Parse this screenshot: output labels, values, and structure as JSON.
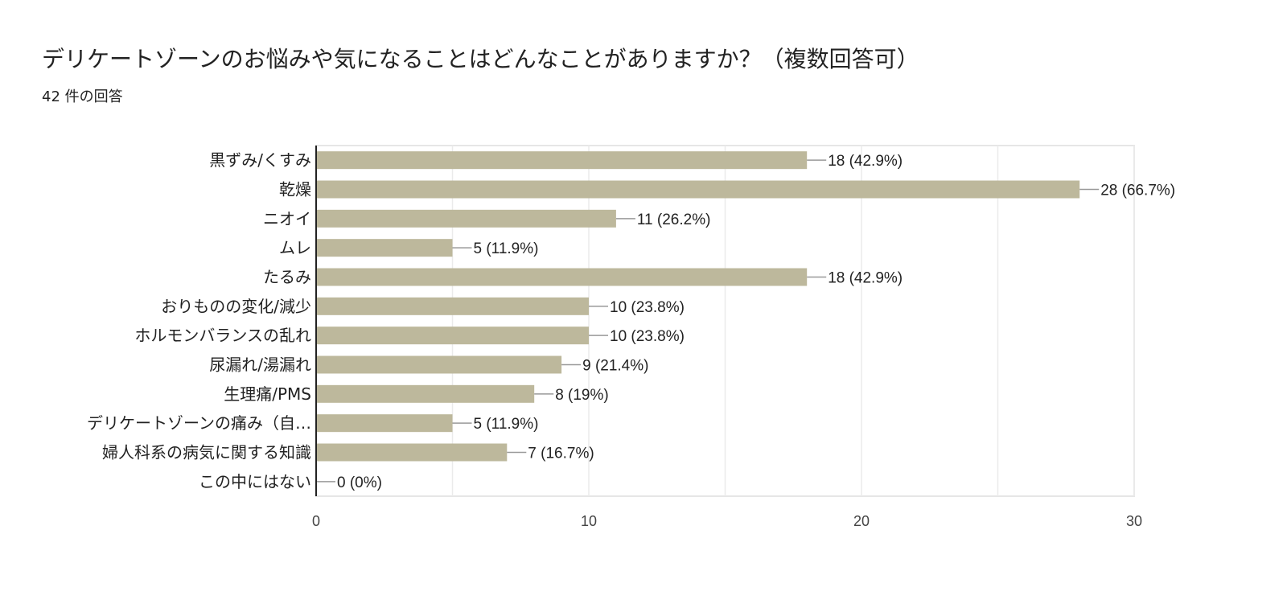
{
  "chart_data": {
    "type": "bar",
    "orientation": "horizontal",
    "title": "デリケートゾーンのお悩みや気になることはどんなことがありますか？（複数回答可）",
    "subtitle": "42 件の回答",
    "categories": [
      "黒ずみ/くすみ",
      "乾燥",
      "ニオイ",
      "ムレ",
      "たるみ",
      "おりものの変化/減少",
      "ホルモンバランスの乱れ",
      "尿漏れ/湯漏れ",
      "生理痛/PMS",
      "デリケートゾーンの痛み（自…",
      "婦人科系の病気に関する知識",
      "この中にはない"
    ],
    "values": [
      18,
      28,
      11,
      5,
      18,
      10,
      10,
      9,
      8,
      5,
      7,
      0
    ],
    "data_labels": [
      "18 (42.9%)",
      "28 (66.7%)",
      "11 (26.2%)",
      "5 (11.9%)",
      "18 (42.9%)",
      "10 (23.8%)",
      "10 (23.8%)",
      "9 (21.4%)",
      "8 (19%)",
      "5 (11.9%)",
      "7 (16.7%)",
      "0 (0%)"
    ],
    "xlim": [
      0,
      30
    ],
    "xticks": [
      "0",
      "10",
      "20",
      "30"
    ],
    "grid": true,
    "bar_color": "#bdb89c"
  }
}
